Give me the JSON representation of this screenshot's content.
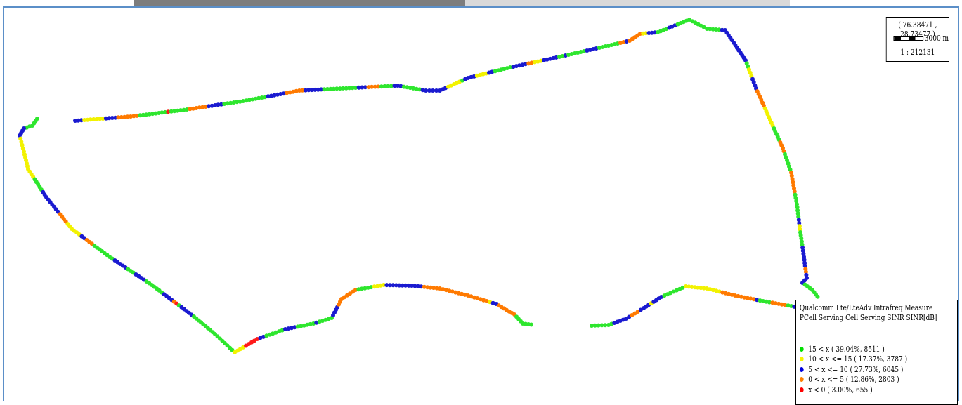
{
  "tabs": [
    {
      "label": "",
      "active": true
    },
    {
      "label": "",
      "active": false
    }
  ],
  "scale_box": {
    "coordinates": "( 76.38471 , 28.73477 )",
    "distance": "3000 m",
    "ratio": "1 : 212131"
  },
  "legend": {
    "title_line1": "Qualcomm Lte/LteAdv Intrafreq Measure",
    "title_line2": "PCell Serving Cell Serving SINR SINR[dB]",
    "items": [
      {
        "label": "15 < x ( 39.04%, 8511 )",
        "color": "#00e000"
      },
      {
        "label": "10 < x <= 15 ( 17.37%, 3787 )",
        "color": "#f5f500"
      },
      {
        "label": "5 < x <= 10 ( 27.73%, 6045 )",
        "color": "#0000e0"
      },
      {
        "label": "0 < x <= 5 ( 12.86%, 2803 )",
        "color": "#ff8000"
      },
      {
        "label": "x < 0 ( 3.00%, 655 )",
        "color": "#ff0000"
      }
    ]
  },
  "colors": {
    "green": "#2ee62e",
    "yellow": "#f2f200",
    "blue": "#1a1ad0",
    "orange": "#ff7a00",
    "red": "#ff1a1a",
    "frame_border": "#5b8fc8"
  }
}
